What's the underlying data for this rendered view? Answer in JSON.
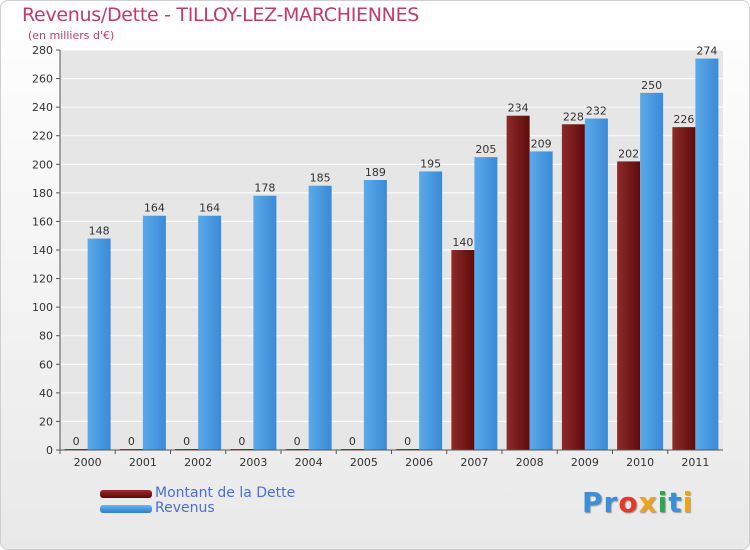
{
  "page": {
    "title": "Revenus/Dette - TILLOY-LEZ-MARCHIENNES",
    "subtitle": "(en milliers d'€)"
  },
  "chart_data": {
    "type": "bar",
    "categories": [
      "2000",
      "2001",
      "2002",
      "2003",
      "2004",
      "2005",
      "2006",
      "2007",
      "2008",
      "2009",
      "2010",
      "2011"
    ],
    "series": [
      {
        "name": "Montant de la Dette",
        "color": "#7a1414",
        "values": [
          0,
          0,
          0,
          0,
          0,
          0,
          0,
          140,
          234,
          228,
          202,
          226
        ]
      },
      {
        "name": "Revenus",
        "color": "#4f9de2",
        "values": [
          148,
          164,
          164,
          178,
          185,
          189,
          195,
          205,
          209,
          232,
          250,
          274
        ]
      }
    ],
    "ylim": [
      0,
      280
    ],
    "yticks": [
      0,
      20,
      40,
      60,
      80,
      100,
      120,
      140,
      160,
      180,
      200,
      220,
      240,
      260,
      280
    ],
    "grid": true,
    "legend_position": "bottom-left"
  },
  "logo": {
    "letters": [
      {
        "char": "P",
        "color": "#3a8fd8"
      },
      {
        "char": "r",
        "color": "#3a8fd8"
      },
      {
        "char": "o",
        "color": "#e23b2a"
      },
      {
        "char": "x",
        "color": "#f0a21a"
      },
      {
        "char": "i",
        "color": "#2aa84a"
      },
      {
        "char": "t",
        "color": "#3a8fd8"
      },
      {
        "char": "i",
        "color": "#f0a21a"
      }
    ]
  }
}
